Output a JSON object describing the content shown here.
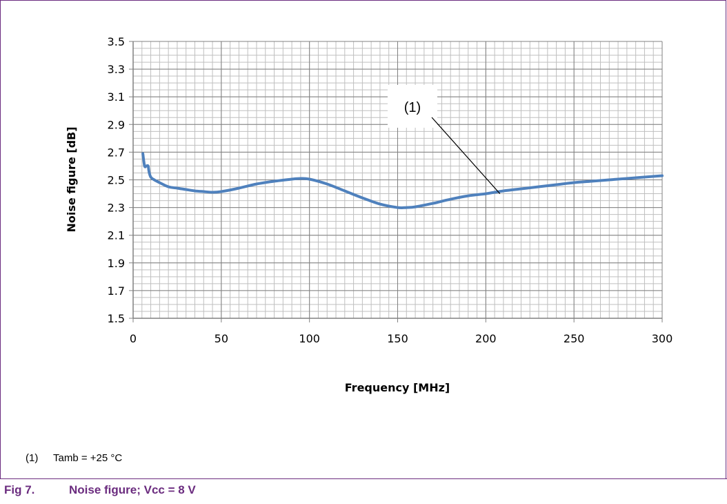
{
  "chart_data": {
    "type": "line",
    "title": "",
    "xlabel": "Frequency [MHz]",
    "ylabel": "Noise figure  [dB]",
    "xlim": [
      0,
      300
    ],
    "ylim": [
      1.5,
      3.5
    ],
    "x_ticks": [
      "0",
      "50",
      "100",
      "150",
      "200",
      "250",
      "300"
    ],
    "y_ticks": [
      "1.5",
      "1.7",
      "1.9",
      "2.1",
      "2.3",
      "2.5",
      "2.7",
      "2.9",
      "3.1",
      "3.3",
      "3.5"
    ],
    "grid": true,
    "series": [
      {
        "color": "#4f81bd",
        "x": [
          5.5,
          6.5,
          7.5,
          8.5,
          9,
          10,
          12,
          15,
          20,
          25,
          30,
          35,
          40,
          45,
          50,
          60,
          70,
          80,
          90,
          95,
          100,
          110,
          120,
          130,
          140,
          150,
          155,
          160,
          170,
          180,
          190,
          200,
          210,
          220,
          230,
          240,
          250,
          260,
          270,
          280,
          290,
          300
        ],
        "y": [
          2.69,
          2.6,
          2.6,
          2.6,
          2.56,
          2.52,
          2.5,
          2.48,
          2.45,
          2.44,
          2.43,
          2.42,
          2.415,
          2.41,
          2.415,
          2.44,
          2.47,
          2.49,
          2.505,
          2.51,
          2.505,
          2.47,
          2.42,
          2.37,
          2.325,
          2.3,
          2.3,
          2.305,
          2.33,
          2.36,
          2.385,
          2.4,
          2.42,
          2.435,
          2.45,
          2.465,
          2.48,
          2.49,
          2.5,
          2.51,
          2.52,
          2.53
        ]
      }
    ],
    "annotation": {
      "text": "(1)",
      "x": 208,
      "y": 2.4
    }
  },
  "note": {
    "number": "(1)",
    "text": "Tamb = +25 °C"
  },
  "caption": {
    "number": "Fig 7.",
    "text": "Noise figure; Vcc = 8 V"
  }
}
